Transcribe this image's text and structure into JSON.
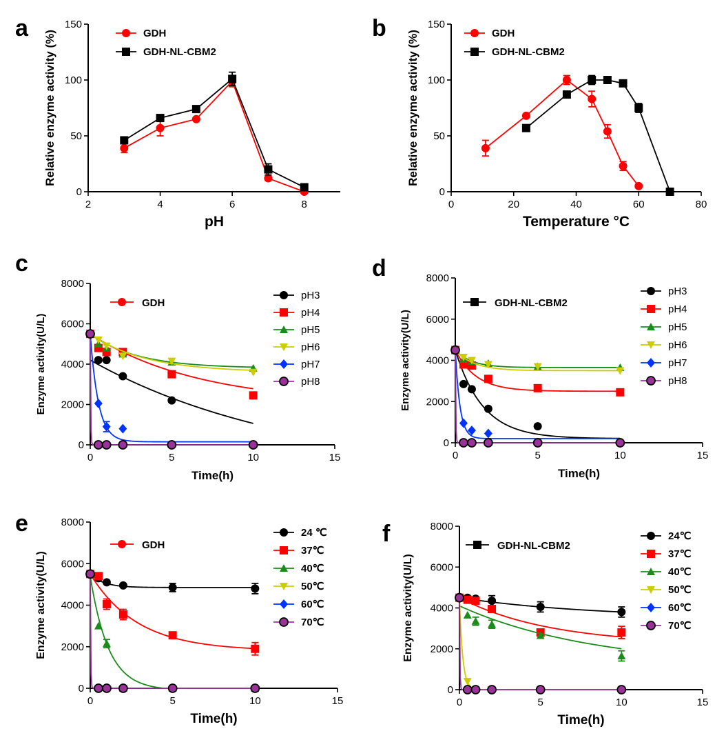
{
  "figure": {
    "description_free": true
  },
  "colors": {
    "black": "#000000",
    "red": "#ff0000",
    "green": "#1a8c1a",
    "yellow": "#cccc00",
    "blue": "#0033ff",
    "purple": "#993399"
  },
  "chart_data": [
    {
      "panel": "a",
      "type": "line",
      "title": "",
      "xlabel": "pH",
      "ylabel": "Relative enzyme activity (%)",
      "xlim": [
        2,
        9
      ],
      "ylim": [
        0,
        150
      ],
      "xticks": [
        2,
        4,
        6,
        8
      ],
      "yticks": [
        0,
        50,
        100,
        150
      ],
      "legend_style": "bold",
      "series": [
        {
          "name": "GDH",
          "color": "#ff0000",
          "marker": "circle",
          "connect": "line",
          "x": [
            3,
            4,
            5,
            6,
            7,
            8
          ],
          "y": [
            39,
            57,
            65,
            99,
            12,
            0
          ],
          "err": [
            4,
            7,
            1,
            5,
            2,
            1
          ]
        },
        {
          "name": "GDH-NL-CBM2",
          "color": "#000000",
          "marker": "square",
          "connect": "line",
          "x": [
            3,
            4,
            5,
            6,
            7,
            8
          ],
          "y": [
            46,
            66,
            74,
            101,
            20,
            4
          ],
          "err": [
            2,
            2,
            1,
            6,
            5,
            1
          ]
        }
      ]
    },
    {
      "panel": "b",
      "type": "line",
      "title": "",
      "xlabel": "Temperature °C",
      "ylabel": "Relative enzyme activity (%)",
      "xlim": [
        0,
        80
      ],
      "ylim": [
        0,
        150
      ],
      "xticks": [
        0,
        20,
        40,
        60,
        80
      ],
      "yticks": [
        0,
        50,
        100,
        150
      ],
      "legend_style": "bold",
      "series": [
        {
          "name": "GDH",
          "color": "#ff0000",
          "marker": "circle",
          "connect": "line",
          "x": [
            11,
            24,
            37,
            45,
            50,
            55,
            60
          ],
          "y": [
            39,
            68,
            100,
            83,
            54,
            23,
            5
          ],
          "err": [
            7,
            1,
            4,
            7,
            6,
            4,
            1
          ]
        },
        {
          "name": "GDH-NL-CBM2",
          "color": "#000000",
          "marker": "square",
          "connect": "line",
          "x": [
            24,
            37,
            45,
            50,
            55,
            60,
            70
          ],
          "y": [
            57,
            87,
            100,
            100,
            97,
            75,
            0
          ],
          "err": [
            1,
            1,
            4,
            1,
            1,
            4,
            1
          ]
        }
      ]
    },
    {
      "panel": "c",
      "type": "scatter",
      "title": "GDH",
      "title_marker": "circle",
      "title_color": "#ff0000",
      "xlabel": "Time(h)",
      "ylabel": "Enzyme activity(U/L)",
      "xlim": [
        0,
        15
      ],
      "ylim": [
        0,
        8000
      ],
      "xticks": [
        0,
        5,
        10,
        15
      ],
      "yticks": [
        0,
        2000,
        4000,
        6000,
        8000
      ],
      "legend_style": "normal",
      "series": [
        {
          "name": "pH3",
          "color": "#000000",
          "marker": "circle",
          "x": [
            0,
            0.5,
            1,
            2,
            5,
            10
          ],
          "y": [
            5500,
            4200,
            4200,
            3400,
            2200,
            0
          ],
          "err": [
            0,
            0,
            0,
            0,
            0,
            0
          ],
          "fit": {
            "model": "exp",
            "a": 5700,
            "k": 0.08,
            "c": -1500
          }
        },
        {
          "name": "pH4",
          "color": "#ff0000",
          "marker": "square",
          "x": [
            0,
            0.5,
            1,
            2,
            5,
            10
          ],
          "y": [
            5500,
            4800,
            4600,
            4600,
            3500,
            2450
          ],
          "err": [
            0,
            0,
            0,
            150,
            0,
            0
          ],
          "fit": {
            "model": "exp",
            "a": 3500,
            "k": 0.15,
            "c": 2000
          }
        },
        {
          "name": "pH5",
          "color": "#1a8c1a",
          "marker": "tri-up",
          "x": [
            0,
            0.5,
            1,
            2,
            5,
            10
          ],
          "y": [
            5500,
            5000,
            4800,
            4500,
            4100,
            3800
          ],
          "err": [
            0,
            0,
            0,
            0,
            0,
            0
          ],
          "fit": {
            "model": "exp",
            "a": 1700,
            "k": 0.35,
            "c": 3800
          }
        },
        {
          "name": "pH6",
          "color": "#cccc00",
          "marker": "tri-down",
          "x": [
            0,
            0.5,
            1,
            2,
            5,
            10
          ],
          "y": [
            5500,
            5200,
            4900,
            4400,
            4150,
            3600
          ],
          "err": [
            0,
            0,
            0,
            0,
            0,
            0
          ],
          "fit": {
            "model": "exp",
            "a": 1900,
            "k": 0.3,
            "c": 3600
          }
        },
        {
          "name": "pH7",
          "color": "#0033ff",
          "marker": "diamond",
          "x": [
            0,
            0.5,
            1,
            2,
            5,
            10
          ],
          "y": [
            5500,
            2050,
            900,
            800,
            0,
            0
          ],
          "err": [
            0,
            0,
            250,
            0,
            0,
            0
          ],
          "fit": {
            "model": "exp",
            "a": 5350,
            "k": 2.0,
            "c": 150
          }
        },
        {
          "name": "pH8",
          "color": "#993399",
          "marker": "circle-open",
          "x": [
            0,
            0.5,
            1,
            2,
            5,
            10
          ],
          "y": [
            5500,
            0,
            0,
            0,
            0,
            0
          ],
          "err": [
            0,
            0,
            0,
            0,
            0,
            0
          ],
          "fit": {
            "model": "exp",
            "a": 5500,
            "k": 40,
            "c": 0
          }
        }
      ]
    },
    {
      "panel": "d",
      "type": "scatter",
      "title": "GDH-NL-CBM2",
      "title_marker": "square",
      "title_color": "#000000",
      "xlabel": "Time(h)",
      "ylabel": "Enzyme activity(U/L)",
      "xlim": [
        0,
        15
      ],
      "ylim": [
        0,
        8000
      ],
      "xticks": [
        0,
        5,
        10,
        15
      ],
      "yticks": [
        0,
        2000,
        4000,
        6000,
        8000
      ],
      "legend_style": "normal",
      "series": [
        {
          "name": "pH3",
          "color": "#000000",
          "marker": "circle",
          "x": [
            0,
            0.5,
            1,
            2,
            5,
            10
          ],
          "y": [
            4500,
            2850,
            2600,
            1650,
            800,
            0
          ],
          "err": [
            0,
            0,
            0,
            0,
            0,
            0
          ],
          "fit": {
            "model": "exp",
            "a": 4300,
            "k": 0.6,
            "c": 200
          }
        },
        {
          "name": "pH4",
          "color": "#ff0000",
          "marker": "square",
          "x": [
            0,
            0.5,
            1,
            2,
            5,
            10
          ],
          "y": [
            4500,
            3800,
            3750,
            3100,
            2650,
            2450
          ],
          "err": [
            0,
            0,
            0,
            0,
            0,
            0
          ],
          "fit": {
            "model": "exp",
            "a": 2000,
            "k": 0.8,
            "c": 2500
          }
        },
        {
          "name": "pH5",
          "color": "#1a8c1a",
          "marker": "tri-up",
          "x": [
            0,
            0.5,
            1,
            2,
            5,
            10
          ],
          "y": [
            4500,
            4050,
            3950,
            3850,
            3700,
            3650
          ],
          "err": [
            0,
            0,
            0,
            0,
            0,
            0
          ],
          "fit": {
            "model": "exp",
            "a": 850,
            "k": 1.0,
            "c": 3650
          }
        },
        {
          "name": "pH6",
          "color": "#cccc00",
          "marker": "tri-down",
          "x": [
            0,
            0.5,
            1,
            2,
            5,
            10
          ],
          "y": [
            4500,
            4150,
            4000,
            3800,
            3700,
            3500
          ],
          "err": [
            0,
            0,
            0,
            0,
            0,
            0
          ],
          "fit": {
            "model": "exp",
            "a": 1000,
            "k": 0.9,
            "c": 3500
          }
        },
        {
          "name": "pH7",
          "color": "#0033ff",
          "marker": "diamond",
          "x": [
            0,
            0.5,
            1,
            2,
            5,
            10
          ],
          "y": [
            4500,
            950,
            600,
            450,
            0,
            0
          ],
          "err": [
            0,
            0,
            0,
            0,
            0,
            0
          ],
          "fit": {
            "model": "exp",
            "a": 4300,
            "k": 3.5,
            "c": 200
          }
        },
        {
          "name": "pH8",
          "color": "#993399",
          "marker": "circle-open",
          "x": [
            0,
            0.5,
            1,
            2,
            5,
            10
          ],
          "y": [
            4500,
            0,
            0,
            0,
            0,
            0
          ],
          "err": [
            0,
            0,
            0,
            0,
            0,
            0
          ],
          "fit": {
            "model": "exp",
            "a": 4500,
            "k": 40,
            "c": 0
          }
        }
      ]
    },
    {
      "panel": "e",
      "type": "scatter",
      "title": "GDH",
      "title_marker": "circle",
      "title_color": "#ff0000",
      "xlabel": "Time(h)",
      "ylabel": "Enzyme activity(U/L)",
      "xlim": [
        0,
        15
      ],
      "ylim": [
        0,
        8000
      ],
      "xticks": [
        0,
        5,
        10,
        15
      ],
      "yticks": [
        0,
        2000,
        4000,
        6000,
        8000
      ],
      "legend_style": "bold",
      "series": [
        {
          "name": "24 ℃",
          "color": "#000000",
          "marker": "circle",
          "x": [
            0,
            0.5,
            1,
            2,
            5,
            10
          ],
          "y": [
            5500,
            5300,
            5100,
            4950,
            4850,
            4800
          ],
          "err": [
            0,
            0,
            0,
            0,
            200,
            250
          ],
          "fit": {
            "model": "exp",
            "a": 650,
            "k": 1.2,
            "c": 4850
          }
        },
        {
          "name": "37℃",
          "color": "#ff0000",
          "marker": "square",
          "x": [
            0,
            0.5,
            1,
            2,
            5,
            10
          ],
          "y": [
            5500,
            5400,
            4050,
            3550,
            2550,
            1900
          ],
          "err": [
            0,
            0,
            250,
            250,
            0,
            300
          ],
          "fit": {
            "model": "exp",
            "a": 3700,
            "k": 0.35,
            "c": 1800
          }
        },
        {
          "name": "40℃",
          "color": "#1a8c1a",
          "marker": "tri-up",
          "x": [
            0,
            0.5,
            1,
            2,
            5,
            10
          ],
          "y": [
            5500,
            3000,
            2150,
            0,
            0,
            0
          ],
          "err": [
            0,
            0,
            200,
            0,
            0,
            0
          ],
          "fit": {
            "model": "exp",
            "a": 5500,
            "k": 0.9,
            "c": -100
          }
        },
        {
          "name": "50℃",
          "color": "#cccc00",
          "marker": "tri-down",
          "x": [
            0
          ],
          "y": [
            5500
          ],
          "err": [
            0
          ]
        },
        {
          "name": "60℃",
          "color": "#0033ff",
          "marker": "diamond",
          "x": [
            0
          ],
          "y": [
            5500
          ],
          "err": [
            0
          ]
        },
        {
          "name": "70℃",
          "color": "#993399",
          "marker": "circle-open",
          "x": [
            0,
            0.5,
            1,
            2,
            5,
            10
          ],
          "y": [
            5500,
            0,
            0,
            0,
            0,
            0
          ],
          "err": [
            0,
            0,
            0,
            0,
            0,
            0
          ],
          "fit": {
            "model": "exp",
            "a": 5500,
            "k": 40,
            "c": 0
          }
        }
      ]
    },
    {
      "panel": "f",
      "type": "scatter",
      "title": "GDH-NL-CBM2",
      "title_marker": "square",
      "title_color": "#000000",
      "xlabel": "Time(h)",
      "ylabel": "Enzyme activity(U/L)",
      "xlim": [
        0,
        15
      ],
      "ylim": [
        0,
        8000
      ],
      "xticks": [
        0,
        5,
        10,
        15
      ],
      "yticks": [
        0,
        2000,
        4000,
        6000,
        8000
      ],
      "legend_style": "bold",
      "series": [
        {
          "name": "24℃",
          "color": "#000000",
          "marker": "circle",
          "x": [
            0,
            0.5,
            1,
            2,
            5,
            10
          ],
          "y": [
            4500,
            4500,
            4450,
            4350,
            4050,
            3800
          ],
          "err": [
            0,
            0,
            0,
            250,
            250,
            250
          ],
          "fit": {
            "model": "exp",
            "a": 1000,
            "k": 0.12,
            "c": 3500
          }
        },
        {
          "name": "37℃",
          "color": "#ff0000",
          "marker": "square",
          "x": [
            0,
            0.5,
            1,
            2,
            5,
            10
          ],
          "y": [
            4500,
            4400,
            4350,
            3950,
            2800,
            2800
          ],
          "err": [
            0,
            0,
            0,
            0,
            150,
            300
          ],
          "fit": {
            "model": "exp",
            "a": 2300,
            "k": 0.18,
            "c": 2200
          }
        },
        {
          "name": "40℃",
          "color": "#1a8c1a",
          "marker": "tri-up",
          "x": [
            0,
            0.5,
            1,
            2,
            5,
            10
          ],
          "y": [
            4500,
            3650,
            3350,
            3200,
            2650,
            1650
          ],
          "err": [
            0,
            0,
            200,
            200,
            0,
            250
          ],
          "fit": {
            "model": "exp",
            "a": 3000,
            "k": 0.12,
            "c": 1100
          }
        },
        {
          "name": "50℃",
          "color": "#cccc00",
          "marker": "tri-down",
          "x": [
            0,
            0.5,
            1,
            2,
            5,
            10
          ],
          "y": [
            4500,
            400,
            0,
            0,
            0,
            0
          ],
          "err": [
            0,
            0,
            0,
            0,
            0,
            0
          ],
          "fit": {
            "model": "exp",
            "a": 4500,
            "k": 5,
            "c": 0
          }
        },
        {
          "name": "60℃",
          "color": "#0033ff",
          "marker": "diamond",
          "x": [
            0
          ],
          "y": [
            4500
          ],
          "err": [
            0
          ]
        },
        {
          "name": "70℃",
          "color": "#993399",
          "marker": "circle-open",
          "x": [
            0,
            0.5,
            1,
            2,
            5,
            10
          ],
          "y": [
            4500,
            0,
            0,
            0,
            0,
            0
          ],
          "err": [
            0,
            0,
            0,
            0,
            0,
            0
          ],
          "fit": {
            "model": "exp",
            "a": 4500,
            "k": 40,
            "c": 0
          }
        }
      ]
    }
  ]
}
